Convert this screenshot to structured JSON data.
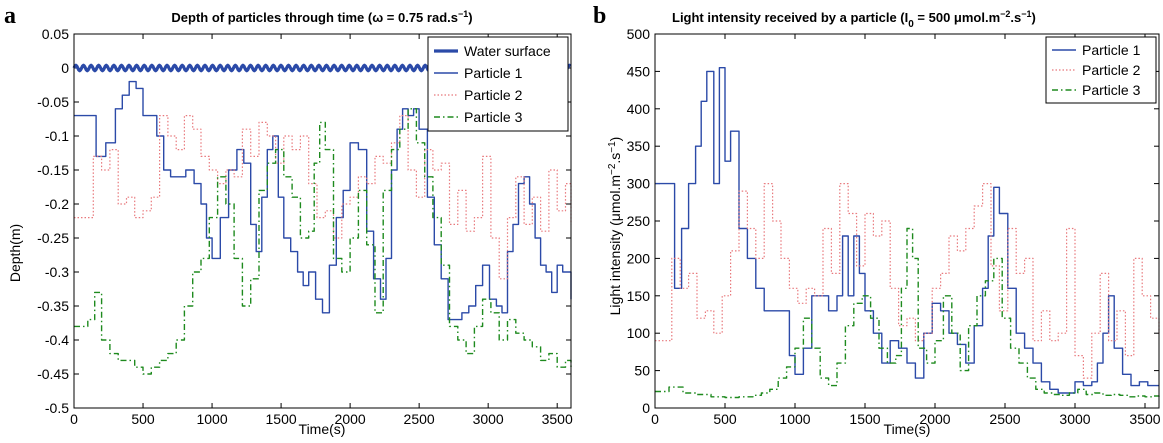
{
  "colors": {
    "water_surface": "#2b4aa8",
    "particle_1": "#2b4aa8",
    "particle_2": "#e8787c",
    "particle_3": "#1e8a1e"
  },
  "chart_data": [
    {
      "panel_label": "a",
      "type": "line",
      "title": "Depth of particles through time (ω = 0.75 rad.s",
      "title_sup": "−1",
      "title_end": ")",
      "xlabel": "Time(s)",
      "ylabel": "Depth(m)",
      "xlim": [
        0,
        3600
      ],
      "ylim": [
        -0.5,
        0.05
      ],
      "xticks": [
        "0",
        "500",
        "1000",
        "1500",
        "2000",
        "2500",
        "3000",
        "3500"
      ],
      "yticks": [
        "0.05",
        "0",
        "-0.05",
        "-0.1",
        "-0.15",
        "-0.2",
        "-0.25",
        "-0.3",
        "-0.35",
        "-0.4",
        "-0.45",
        "-0.5"
      ],
      "legend_position": "top-right",
      "grid": false,
      "series": [
        {
          "name": "Water surface",
          "style": "thick-solid",
          "color_key": "water_surface",
          "x": [
            0,
            3600
          ],
          "y": [
            0,
            0
          ],
          "oscillation_amplitude": 0.004,
          "oscillation_period": 55
        },
        {
          "name": "Particle 1",
          "style": "solid",
          "color_key": "particle_1",
          "x": [
            0,
            100,
            160,
            230,
            300,
            350,
            400,
            450,
            500,
            550,
            600,
            650,
            700,
            760,
            810,
            870,
            920,
            960,
            1000,
            1060,
            1120,
            1180,
            1230,
            1280,
            1320,
            1360,
            1400,
            1440,
            1480,
            1520,
            1570,
            1620,
            1660,
            1700,
            1750,
            1800,
            1850,
            1900,
            1950,
            2000,
            2060,
            2120,
            2170,
            2220,
            2260,
            2300,
            2340,
            2380,
            2420,
            2460,
            2500,
            2560,
            2610,
            2660,
            2710,
            2760,
            2810,
            2860,
            2910,
            2960,
            3010,
            3060,
            3100,
            3140,
            3180,
            3220,
            3260,
            3300,
            3340,
            3380,
            3420,
            3460,
            3500,
            3540,
            3600
          ],
          "y": [
            -0.07,
            -0.07,
            -0.13,
            -0.11,
            -0.06,
            -0.04,
            -0.02,
            -0.03,
            -0.07,
            -0.07,
            -0.1,
            -0.15,
            -0.16,
            -0.16,
            -0.15,
            -0.17,
            -0.2,
            -0.25,
            -0.28,
            -0.22,
            -0.15,
            -0.12,
            -0.14,
            -0.23,
            -0.27,
            -0.19,
            -0.12,
            -0.1,
            -0.19,
            -0.25,
            -0.27,
            -0.3,
            -0.32,
            -0.3,
            -0.34,
            -0.36,
            -0.29,
            -0.22,
            -0.18,
            -0.11,
            -0.12,
            -0.24,
            -0.31,
            -0.34,
            -0.28,
            -0.15,
            -0.09,
            -0.06,
            -0.07,
            -0.06,
            -0.09,
            -0.19,
            -0.26,
            -0.31,
            -0.37,
            -0.37,
            -0.36,
            -0.35,
            -0.32,
            -0.29,
            -0.34,
            -0.35,
            -0.36,
            -0.27,
            -0.23,
            -0.17,
            -0.16,
            -0.2,
            -0.25,
            -0.29,
            -0.3,
            -0.33,
            -0.29,
            -0.3,
            -0.34
          ]
        },
        {
          "name": "Particle 2",
          "style": "dotted",
          "color_key": "particle_2",
          "x": [
            0,
            80,
            140,
            200,
            260,
            320,
            380,
            440,
            500,
            560,
            620,
            680,
            740,
            800,
            860,
            920,
            980,
            1040,
            1100,
            1160,
            1220,
            1280,
            1340,
            1400,
            1460,
            1520,
            1580,
            1640,
            1700,
            1760,
            1820,
            1880,
            1940,
            2000,
            2060,
            2120,
            2180,
            2240,
            2300,
            2360,
            2420,
            2480,
            2540,
            2600,
            2660,
            2720,
            2780,
            2840,
            2900,
            2960,
            3020,
            3080,
            3140,
            3200,
            3260,
            3320,
            3380,
            3440,
            3500,
            3560,
            3600
          ],
          "y": [
            -0.22,
            -0.22,
            -0.13,
            -0.15,
            -0.12,
            -0.2,
            -0.19,
            -0.22,
            -0.21,
            -0.19,
            -0.07,
            -0.1,
            -0.12,
            -0.07,
            -0.09,
            -0.13,
            -0.15,
            -0.17,
            -0.15,
            -0.16,
            -0.09,
            -0.13,
            -0.08,
            -0.1,
            -0.14,
            -0.1,
            -0.12,
            -0.1,
            -0.17,
            -0.22,
            -0.21,
            -0.25,
            -0.2,
            -0.19,
            -0.16,
            -0.17,
            -0.13,
            -0.14,
            -0.11,
            -0.07,
            -0.15,
            -0.19,
            -0.12,
            -0.15,
            -0.14,
            -0.23,
            -0.18,
            -0.24,
            -0.22,
            -0.13,
            -0.25,
            -0.31,
            -0.22,
            -0.16,
            -0.23,
            -0.19,
            -0.24,
            -0.15,
            -0.21,
            -0.17,
            -0.23
          ]
        },
        {
          "name": "Particle 3",
          "style": "dash-dot",
          "color_key": "particle_3",
          "x": [
            0,
            100,
            150,
            200,
            260,
            320,
            380,
            440,
            500,
            560,
            620,
            680,
            740,
            800,
            860,
            920,
            980,
            1040,
            1100,
            1160,
            1220,
            1280,
            1340,
            1400,
            1460,
            1520,
            1580,
            1640,
            1700,
            1740,
            1780,
            1820,
            1880,
            1940,
            2000,
            2060,
            2120,
            2180,
            2240,
            2300,
            2360,
            2420,
            2480,
            2540,
            2600,
            2660,
            2720,
            2780,
            2840,
            2900,
            2960,
            3020,
            3080,
            3140,
            3200,
            3260,
            3320,
            3380,
            3440,
            3500,
            3560,
            3600
          ],
          "y": [
            -0.38,
            -0.37,
            -0.33,
            -0.4,
            -0.42,
            -0.43,
            -0.43,
            -0.44,
            -0.45,
            -0.44,
            -0.43,
            -0.42,
            -0.4,
            -0.35,
            -0.3,
            -0.28,
            -0.22,
            -0.16,
            -0.2,
            -0.28,
            -0.35,
            -0.31,
            -0.18,
            -0.14,
            -0.12,
            -0.16,
            -0.19,
            -0.25,
            -0.24,
            -0.14,
            -0.08,
            -0.12,
            -0.28,
            -0.3,
            -0.25,
            -0.18,
            -0.26,
            -0.36,
            -0.18,
            -0.12,
            -0.09,
            -0.06,
            -0.11,
            -0.16,
            -0.22,
            -0.29,
            -0.38,
            -0.4,
            -0.42,
            -0.38,
            -0.34,
            -0.36,
            -0.4,
            -0.37,
            -0.39,
            -0.4,
            -0.41,
            -0.43,
            -0.42,
            -0.44,
            -0.43,
            -0.44
          ]
        }
      ]
    },
    {
      "panel_label": "b",
      "type": "line",
      "title": "Light intensity received by a particle (I",
      "title_sub": "0",
      "title_mid": " = 500 μmol.m",
      "title_sup1": "−2",
      "title_mid2": ".s",
      "title_sup2": "−1",
      "title_end": ")",
      "xlabel": "Time(s)",
      "ylabel": "Light intensity (μmol.m",
      "ylabel_sup1": "−2",
      "ylabel_mid": ".s",
      "ylabel_sup2": "−1",
      "ylabel_end": ")",
      "xlim": [
        0,
        3600
      ],
      "ylim": [
        0,
        500
      ],
      "xticks": [
        "0",
        "500",
        "1000",
        "1500",
        "2000",
        "2500",
        "3000",
        "3500"
      ],
      "yticks": [
        "500",
        "450",
        "400",
        "350",
        "300",
        "250",
        "200",
        "150",
        "100",
        "50",
        "0"
      ],
      "legend_position": "top-right",
      "grid": false,
      "series": [
        {
          "name": "Particle 1",
          "style": "solid",
          "color_key": "particle_1",
          "x": [
            0,
            100,
            140,
            190,
            240,
            290,
            330,
            370,
            420,
            460,
            500,
            540,
            600,
            660,
            720,
            780,
            830,
            880,
            920,
            960,
            1000,
            1060,
            1120,
            1180,
            1240,
            1300,
            1340,
            1380,
            1420,
            1460,
            1500,
            1560,
            1620,
            1680,
            1740,
            1800,
            1860,
            1920,
            1980,
            2040,
            2100,
            2160,
            2220,
            2280,
            2340,
            2380,
            2420,
            2460,
            2520,
            2580,
            2640,
            2700,
            2760,
            2820,
            2880,
            2940,
            3000,
            3060,
            3120,
            3160,
            3200,
            3240,
            3280,
            3340,
            3400,
            3460,
            3520,
            3600
          ],
          "y": [
            300,
            300,
            160,
            240,
            300,
            350,
            410,
            450,
            300,
            455,
            330,
            370,
            240,
            200,
            160,
            130,
            130,
            130,
            130,
            70,
            45,
            80,
            150,
            150,
            130,
            150,
            230,
            150,
            230,
            180,
            130,
            100,
            60,
            90,
            80,
            60,
            40,
            100,
            140,
            130,
            100,
            85,
            60,
            110,
            160,
            230,
            295,
            260,
            160,
            100,
            80,
            60,
            35,
            25,
            20,
            20,
            35,
            30,
            35,
            60,
            100,
            150,
            80,
            45,
            30,
            35,
            30,
            30
          ]
        },
        {
          "name": "Particle 2",
          "style": "dotted",
          "color_key": "particle_2",
          "x": [
            0,
            60,
            120,
            180,
            240,
            300,
            360,
            420,
            480,
            540,
            600,
            660,
            720,
            780,
            840,
            900,
            960,
            1020,
            1080,
            1140,
            1200,
            1260,
            1320,
            1380,
            1440,
            1500,
            1560,
            1620,
            1680,
            1740,
            1800,
            1860,
            1920,
            1980,
            2040,
            2100,
            2160,
            2220,
            2280,
            2340,
            2400,
            2460,
            2520,
            2580,
            2640,
            2700,
            2760,
            2820,
            2880,
            2940,
            3000,
            3060,
            3120,
            3180,
            3240,
            3300,
            3360,
            3420,
            3480,
            3540,
            3600
          ],
          "y": [
            90,
            90,
            200,
            160,
            180,
            120,
            130,
            100,
            150,
            210,
            290,
            240,
            200,
            300,
            250,
            200,
            160,
            140,
            160,
            150,
            240,
            180,
            300,
            260,
            190,
            260,
            230,
            250,
            160,
            110,
            120,
            90,
            100,
            160,
            180,
            230,
            210,
            240,
            270,
            300,
            190,
            130,
            240,
            180,
            200,
            90,
            130,
            90,
            100,
            240,
            70,
            40,
            100,
            180,
            90,
            130,
            70,
            200,
            150,
            120,
            100
          ]
        },
        {
          "name": "Particle 3",
          "style": "dash-dot",
          "color_key": "particle_3",
          "x": [
            0,
            100,
            200,
            300,
            400,
            500,
            600,
            700,
            760,
            820,
            880,
            940,
            1000,
            1060,
            1120,
            1180,
            1240,
            1300,
            1360,
            1420,
            1480,
            1540,
            1600,
            1660,
            1720,
            1760,
            1800,
            1840,
            1880,
            1940,
            2000,
            2060,
            2120,
            2180,
            2240,
            2300,
            2360,
            2420,
            2480,
            2540,
            2600,
            2660,
            2720,
            2780,
            2840,
            2900,
            2960,
            3020,
            3080,
            3140,
            3200,
            3260,
            3320,
            3380,
            3440,
            3500,
            3560,
            3600
          ],
          "y": [
            22,
            28,
            20,
            18,
            15,
            14,
            15,
            17,
            20,
            25,
            40,
            55,
            80,
            120,
            80,
            40,
            30,
            60,
            110,
            140,
            150,
            120,
            80,
            60,
            70,
            160,
            240,
            200,
            80,
            60,
            90,
            150,
            100,
            50,
            110,
            150,
            170,
            200,
            120,
            80,
            60,
            40,
            25,
            20,
            18,
            17,
            20,
            25,
            18,
            20,
            17,
            18,
            17,
            15,
            16,
            15,
            16,
            15
          ]
        }
      ]
    }
  ]
}
